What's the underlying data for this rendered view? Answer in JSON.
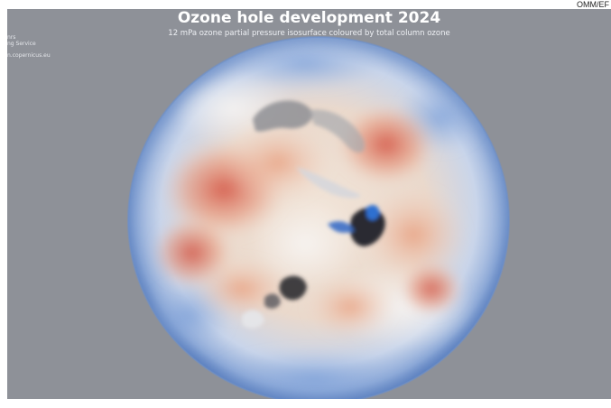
{
  "credit": "OMM/EF",
  "title": "Ozone hole development 2024",
  "subtitle": "12 mPa ozone partial pressure isosurface coloured by total column ozone",
  "corner_text": [
    "nrs",
    "ng Service",
    "n.copernicus.eu"
  ],
  "colors": {
    "background": "#8e9198",
    "globe_outer": "#6f93cf",
    "globe_mid": "#dde4ef",
    "ozone_high": "#c83a2e",
    "ozone_mid": "#e9a485",
    "hole_core": "#2c2c30",
    "hole_blue": "#2f6fd0"
  }
}
